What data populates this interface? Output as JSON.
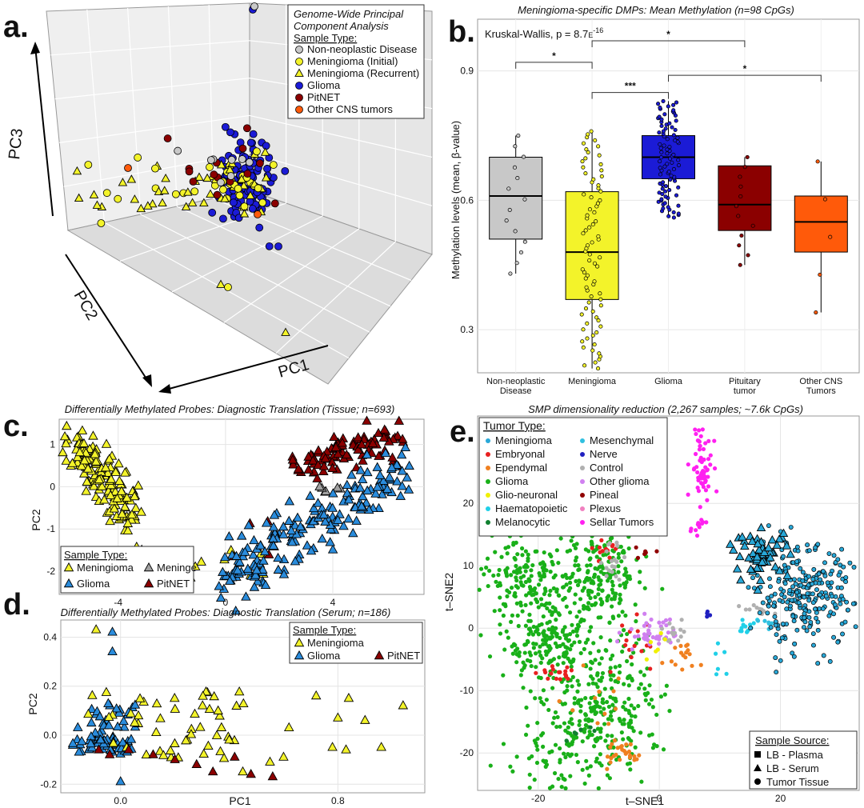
{
  "figure": {
    "panels": {
      "a": {
        "letter": "a."
      },
      "b": {
        "letter": "b."
      },
      "c": {
        "letter": "c."
      },
      "d": {
        "letter": "d."
      },
      "e": {
        "letter": "e."
      }
    }
  },
  "colors": {
    "meningioma": "#f3f32a",
    "glioma_blue": "#1b1bd6",
    "pitnet": "#8b0000",
    "non_neoplastic": "#c8c8c8",
    "other_cns": "#ff5a0a",
    "glioma_lightblue": "#2a8cdc",
    "meninge_gray": "#a0a0a0",
    "tsne_meningioma": "#29a8d8",
    "tsne_embryonal": "#e82020",
    "tsne_ependymal": "#f08020",
    "tsne_glioma": "#19b019",
    "tsne_glio_neuronal": "#f0f000",
    "tsne_haematopoietic": "#20d0e8",
    "tsne_melanocytic": "#108030",
    "tsne_mesenchymal": "#30c0e0",
    "tsne_nerve": "#2020c0",
    "tsne_control": "#b0b0b0",
    "tsne_other_glioma": "#d080f0",
    "tsne_pineal": "#900000",
    "tsne_plexus": "#f080c0",
    "tsne_sellar": "#ff20f0"
  },
  "chart_data": [
    {
      "panel": "a",
      "type": "scatter",
      "subtype": "3d-pca",
      "axes": {
        "x": "PC1",
        "y": "PC2",
        "z": "PC3"
      },
      "legend": {
        "title_line1": "Genome-Wide Principal",
        "title_line2": "Component Analysis",
        "subtitle": "Sample Type:",
        "placement": "top-right",
        "entries": [
          {
            "label": "Non-neoplastic Disease",
            "marker": "circle",
            "color": "#c8c8c8"
          },
          {
            "label": "Meningioma (Initial)",
            "marker": "circle",
            "color": "#f3f32a"
          },
          {
            "label": "Meningioma (Recurrent)",
            "marker": "triangle",
            "color": "#f3f32a"
          },
          {
            "label": "Glioma",
            "marker": "circle",
            "color": "#1b1bd6"
          },
          {
            "label": "PitNET",
            "marker": "circle",
            "color": "#8b0000"
          },
          {
            "label": "Other CNS tumors",
            "marker": "circle",
            "color": "#ff5a0a"
          }
        ]
      }
    },
    {
      "panel": "b",
      "type": "box",
      "title": "Meningioma-specific DMPs: Mean Methylation (n=98 CpGs)",
      "annotation_main": "Kruskal-Wallis, p = 8.7",
      "annotation_e": "E",
      "annotation_exp": "-16",
      "ylabel": "Methylation levels (mean, β-value)",
      "ylim": [
        0.2,
        1.02
      ],
      "yticks": [
        0.3,
        0.6,
        0.9
      ],
      "ytick_labels": [
        "0.3",
        "0.6",
        "0.9"
      ],
      "grid": true,
      "categories": [
        {
          "label_line1": "Non-neoplastic",
          "label_line2": "Disease",
          "color": "#c8c8c8",
          "q1": 0.51,
          "median": 0.61,
          "q3": 0.7,
          "whisker_low": 0.43,
          "whisker_high": 0.75,
          "n_points": 14
        },
        {
          "label_line1": "Meningioma",
          "label_line2": "",
          "color": "#f3f32a",
          "q1": 0.37,
          "median": 0.48,
          "q3": 0.62,
          "whisker_low": 0.21,
          "whisker_high": 0.76,
          "n_points": 80
        },
        {
          "label_line1": "Glioma",
          "label_line2": "",
          "color": "#1b1bd6",
          "q1": 0.65,
          "median": 0.7,
          "q3": 0.75,
          "whisker_low": 0.56,
          "whisker_high": 0.83,
          "n_points": 90
        },
        {
          "label_line1": "Pituitary",
          "label_line2": "tumor",
          "color": "#8b0000",
          "q1": 0.53,
          "median": 0.59,
          "q3": 0.68,
          "whisker_low": 0.45,
          "whisker_high": 0.7,
          "n_points": 12
        },
        {
          "label_line1": "Other CNS",
          "label_line2": "Tumors",
          "color": "#ff5a0a",
          "q1": 0.48,
          "median": 0.55,
          "q3": 0.61,
          "whisker_low": 0.34,
          "whisker_high": 0.69,
          "n_points": 5
        }
      ],
      "significance": [
        {
          "from": 0,
          "to": 1,
          "label": "*",
          "y": 0.92
        },
        {
          "from": 1,
          "to": 3,
          "label": "*",
          "y": 0.97
        },
        {
          "from": 1,
          "to": 2,
          "label": "***",
          "y": 0.85
        },
        {
          "from": 2,
          "to": 4,
          "label": "*",
          "y": 0.89
        }
      ]
    },
    {
      "panel": "c",
      "type": "scatter",
      "title": "Differentially Methylated Probes: Diagnostic Translation (Tissue; n=693)",
      "ylabel": "PC2",
      "xlim": [
        -6.2,
        7.4
      ],
      "ylim": [
        -2.55,
        1.6
      ],
      "xticks": [
        -4,
        0,
        4
      ],
      "xtick_labels": [
        "-4",
        "0",
        "4"
      ],
      "yticks": [
        1,
        0,
        -1,
        -2
      ],
      "ytick_labels": [
        "1",
        "0",
        "-1",
        "-2"
      ],
      "grid": true,
      "legend": {
        "title": "Sample Type:",
        "placement": "bottom-left",
        "entries": [
          {
            "label": "Meningioma",
            "color": "#f3f32a"
          },
          {
            "label": "Meninge",
            "color": "#a0a0a0"
          },
          {
            "label": "Glioma",
            "color": "#2a8cdc"
          },
          {
            "label": "PitNET",
            "color": "#8b0000"
          }
        ]
      }
    },
    {
      "panel": "d",
      "type": "scatter",
      "title": "Differentially Methylated Probes: Diagnostic Translation (Serum; n=186)",
      "xlabel": "PC1",
      "ylabel": "PC2",
      "xlim": [
        -0.22,
        1.12
      ],
      "ylim": [
        -0.235,
        0.47
      ],
      "xticks": [
        0.0,
        0.8
      ],
      "xtick_labels": [
        "0.0",
        "0.8"
      ],
      "yticks": [
        0.4,
        0.2,
        0.0,
        -0.2
      ],
      "ytick_labels": [
        "0.4",
        "0.2",
        "0.0",
        "-0.2"
      ],
      "grid": true,
      "legend": {
        "title": "Sample Type:",
        "placement": "top-right",
        "entries": [
          {
            "label": "Meningioma",
            "color": "#f3f32a"
          },
          {
            "label": "Glioma",
            "color": "#2a8cdc"
          },
          {
            "label": "PitNET",
            "color": "#8b0000"
          }
        ]
      }
    },
    {
      "panel": "e",
      "type": "scatter",
      "title": "SMP dimensionality reduction (2,267 samples; ~7.6k CpGs)",
      "xlabel": "t–SNE1",
      "ylabel": "t–SNE2",
      "xlim": [
        -30,
        33
      ],
      "ylim": [
        -26,
        34
      ],
      "xticks": [
        -20,
        0,
        20
      ],
      "xtick_labels": [
        "-20",
        "0",
        "20"
      ],
      "yticks": [
        20,
        10,
        0,
        -10,
        -20
      ],
      "ytick_labels": [
        "20",
        "10",
        "0",
        "-10",
        "-20"
      ],
      "grid": true,
      "legend": {
        "title": "Tumor Type:",
        "placement": "top-left",
        "entries": [
          {
            "label": "Meningioma",
            "color": "#29a8d8"
          },
          {
            "label": "Embryonal",
            "color": "#e82020"
          },
          {
            "label": "Ependymal",
            "color": "#f08020"
          },
          {
            "label": "Glioma",
            "color": "#19b019"
          },
          {
            "label": "Glio-neuronal",
            "color": "#f0f000"
          },
          {
            "label": "Haematopoietic",
            "color": "#20d0e8"
          },
          {
            "label": "Melanocytic",
            "color": "#108030"
          },
          {
            "label": "Mesenchymal",
            "color": "#30c0e0"
          },
          {
            "label": "Nerve",
            "color": "#2020c0"
          },
          {
            "label": "Control",
            "color": "#b0b0b0"
          },
          {
            "label": "Other glioma",
            "color": "#d080f0"
          },
          {
            "label": "Pineal",
            "color": "#900000"
          },
          {
            "label": "Plexus",
            "color": "#f080c0"
          },
          {
            "label": "Sellar Tumors",
            "color": "#ff20f0"
          }
        ]
      },
      "source_legend": {
        "title": "Sample Source:",
        "placement": "bottom-right",
        "entries": [
          {
            "label": "LB - Plasma",
            "marker": "square"
          },
          {
            "label": "LB - Serum",
            "marker": "triangle"
          },
          {
            "label": "Tumor Tissue",
            "marker": "circle"
          }
        ]
      }
    }
  ]
}
